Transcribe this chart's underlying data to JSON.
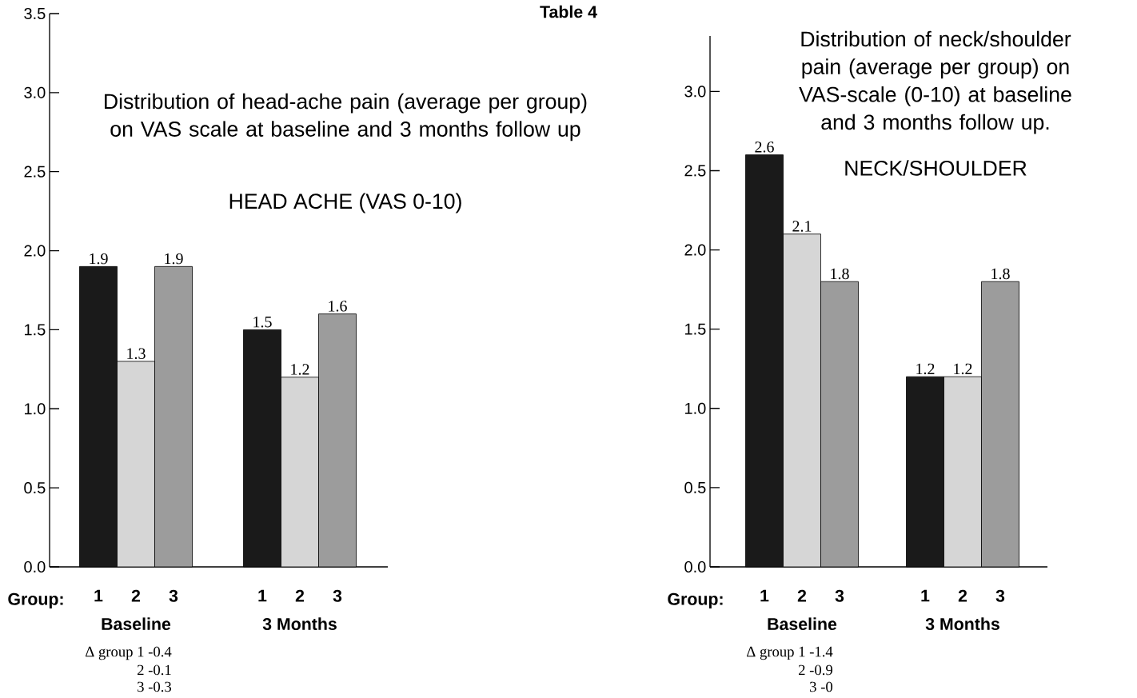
{
  "chart_data": [
    {
      "type": "bar",
      "title": "Distribution of head-ache pain (average per group) on VAS scale at baseline and 3 months follow up",
      "subtitle": "HEAD ACHE (VAS 0-10)",
      "xlabel": "Group:",
      "categories": [
        "Baseline",
        "3 Months"
      ],
      "series": [
        {
          "name": "1",
          "color": "#1a1a1a",
          "values": [
            1.9,
            1.5
          ]
        },
        {
          "name": "2",
          "color": "#d6d6d6",
          "values": [
            1.3,
            1.2
          ]
        },
        {
          "name": "3",
          "color": "#9c9c9c",
          "values": [
            1.9,
            1.6
          ]
        }
      ],
      "ylim": [
        0,
        3.5
      ],
      "yticks": [
        {
          "value": 0,
          "label": "0.0"
        },
        0.5,
        {
          "value": 1,
          "label": "1.0"
        },
        1.5,
        {
          "value": 2,
          "label": "2.0"
        },
        2.5,
        {
          "value": 3,
          "label": "3.0"
        },
        3.5
      ],
      "data_labels": true,
      "annotations": [
        "Table 4",
        "Δ group  1  -0.4",
        "2  -0.1",
        "3  -0.3"
      ]
    },
    {
      "type": "bar",
      "title": "Distribution of neck/shoulder pain (average per group) on VAS-scale (0-10) at baseline and 3 months follow up.",
      "subtitle": "NECK/SHOULDER",
      "xlabel": "Group:",
      "categories": [
        "Baseline",
        "3 Months"
      ],
      "series": [
        {
          "name": "1",
          "color": "#1a1a1a",
          "values": [
            2.6,
            1.2
          ]
        },
        {
          "name": "2",
          "color": "#d6d6d6",
          "values": [
            2.1,
            1.2
          ]
        },
        {
          "name": "3",
          "color": "#9c9c9c",
          "values": [
            1.8,
            1.8
          ]
        }
      ],
      "ylim": [
        0,
        3.35
      ],
      "yticks": [
        {
          "value": 0,
          "label": "0.0"
        },
        0.5,
        {
          "value": 1,
          "label": "1.0"
        },
        1.5,
        {
          "value": 2,
          "label": "2.0"
        },
        2.5,
        {
          "value": 3,
          "label": "3.0"
        }
      ],
      "data_labels": true,
      "annotations": [
        "Δ group  1  -1.4",
        "2  -0.9",
        "3  -0"
      ]
    }
  ]
}
